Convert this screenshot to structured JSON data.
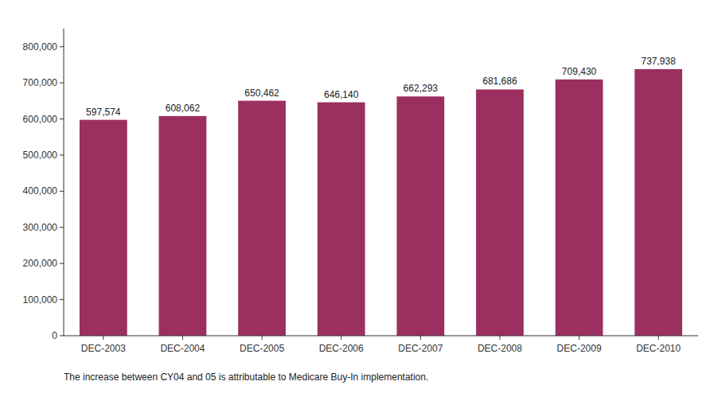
{
  "chart_data": {
    "type": "bar",
    "categories": [
      "DEC-2003",
      "DEC-2004",
      "DEC-2005",
      "DEC-2006",
      "DEC-2007",
      "DEC-2008",
      "DEC-2009",
      "DEC-2010"
    ],
    "values": [
      597574,
      608062,
      650462,
      646140,
      662293,
      681686,
      709430,
      737938
    ],
    "value_labels": [
      "597,574",
      "608,062",
      "650,462",
      "646,140",
      "662,293",
      "681,686",
      "709,430",
      "737,938"
    ],
    "data_labels": true,
    "color": "#9B3060",
    "ylim": [
      0,
      850000
    ],
    "yticks": [
      0,
      {
        "value": 100000,
        "label": "100,000"
      },
      {
        "value": 200000,
        "label": "200,000"
      },
      {
        "value": 300000,
        "label": "300,000"
      },
      {
        "value": 400000,
        "label": "400,000"
      },
      {
        "value": 500000,
        "label": "500,000"
      },
      {
        "value": 600000,
        "label": "600,000"
      },
      {
        "value": 700000,
        "label": "700,000"
      },
      {
        "value": 800000,
        "label": "800,000"
      }
    ],
    "grid": false,
    "annotations": [
      "The increase between CY04 and 05 is attributable to Medicare Buy-In implementation."
    ]
  }
}
